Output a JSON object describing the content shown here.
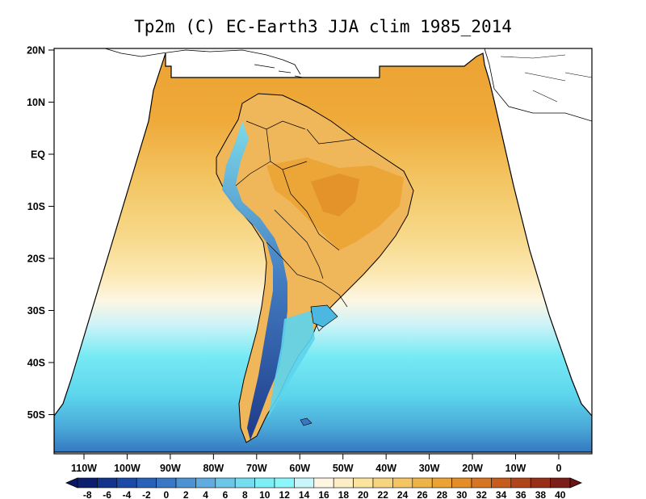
{
  "title": "Tp2m (C) EC-Earth3 JJA clim 1985_2014",
  "lat_ticks": [
    {
      "label": "20N",
      "lat": 20
    },
    {
      "label": "10N",
      "lat": 10
    },
    {
      "label": "EQ",
      "lat": 0
    },
    {
      "label": "10S",
      "lat": -10
    },
    {
      "label": "20S",
      "lat": -20
    },
    {
      "label": "30S",
      "lat": -30
    },
    {
      "label": "40S",
      "lat": -40
    },
    {
      "label": "50S",
      "lat": -50
    }
  ],
  "lon_ticks": [
    {
      "label": "110W",
      "lon": -110
    },
    {
      "label": "100W",
      "lon": -100
    },
    {
      "label": "90W",
      "lon": -90
    },
    {
      "label": "80W",
      "lon": -80
    },
    {
      "label": "70W",
      "lon": -70
    },
    {
      "label": "60W",
      "lon": -60
    },
    {
      "label": "50W",
      "lon": -50
    },
    {
      "label": "40W",
      "lon": -40
    },
    {
      "label": "30W",
      "lon": -30
    },
    {
      "label": "20W",
      "lon": -20
    },
    {
      "label": "10W",
      "lon": -10
    },
    {
      "label": "0",
      "lon": 0
    }
  ],
  "colorbar": {
    "labels": [
      "-8",
      "-6",
      "-4",
      "-2",
      "0",
      "2",
      "4",
      "6",
      "8",
      "10",
      "12",
      "14",
      "16",
      "18",
      "20",
      "22",
      "24",
      "26",
      "28",
      "30",
      "32",
      "34",
      "36",
      "38",
      "40"
    ],
    "colors": [
      "#0a1f6e",
      "#12348c",
      "#1a4aa6",
      "#2861b8",
      "#3a78c6",
      "#4e92d2",
      "#60acde",
      "#6cc6e8",
      "#76dcf0",
      "#7ceef6",
      "#8cf6fa",
      "#c8f6fa",
      "#fdf6e3",
      "#fdeec4",
      "#fbe49e",
      "#f7d580",
      "#f3c563",
      "#efb447",
      "#eba333",
      "#e38e28",
      "#d67522",
      "#c45c1e",
      "#b0441b",
      "#983019",
      "#7c1e18"
    ],
    "under_color": "#081863",
    "over_color": "#6a1414"
  }
}
